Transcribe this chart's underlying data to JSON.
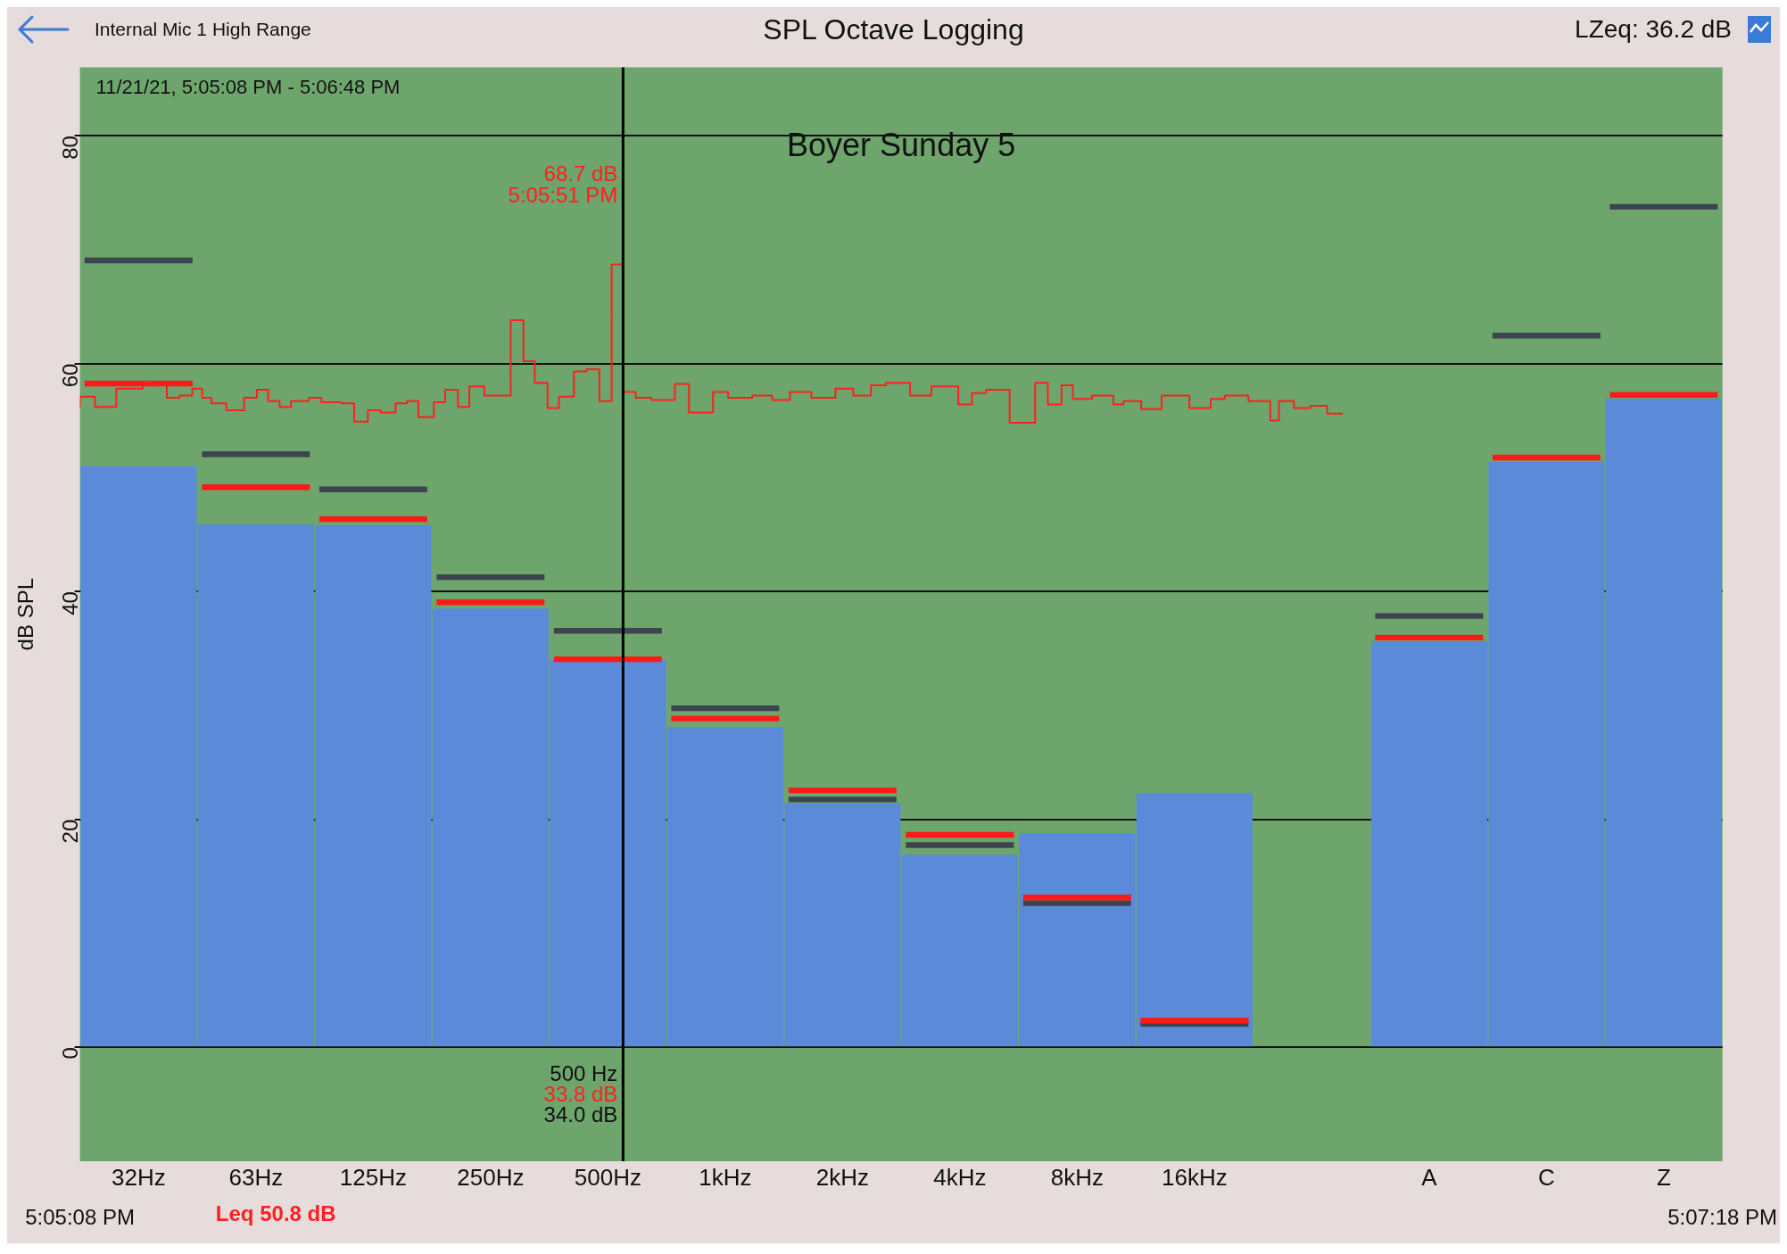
{
  "chart_data": {
    "type": "bar",
    "title": "SPL Octave Logging",
    "subtitle": "Boyer Sunday 5",
    "ylabel": "dB SPL",
    "categories": [
      "32Hz",
      "63Hz",
      "125Hz",
      "250Hz",
      "500Hz",
      "1kHz",
      "2kHz",
      "4kHz",
      "8kHz",
      "16kHz",
      null,
      "A",
      "C",
      "Z"
    ],
    "series": [
      {
        "color": "#5b8ad8",
        "values": [
          51.0,
          45.9,
          45.8,
          38.5,
          34.0,
          28.1,
          21.4,
          16.9,
          18.8,
          22.3,
          null,
          35.6,
          51.4,
          56.9
        ]
      },
      {
        "color": "#3c4450",
        "base": [
          68.8,
          51.8,
          48.7,
          41.0,
          36.3,
          29.5,
          21.5,
          17.5,
          12.4,
          1.8,
          null,
          37.6,
          62.2,
          73.5
        ],
        "values": [
          0.5,
          0.5,
          0.5,
          0.5,
          0.5,
          0.5,
          0.5,
          0.5,
          0.5,
          0.5,
          null,
          0.5,
          0.5,
          0.5
        ]
      },
      {
        "color": "#ff1a1a",
        "base": [
          58.0,
          48.9,
          46.1,
          38.8,
          33.8,
          28.6,
          22.3,
          18.4,
          12.9,
          2.1,
          null,
          35.7,
          51.5,
          57.0
        ],
        "values": [
          0.5,
          0.5,
          0.5,
          0.5,
          0.5,
          0.5,
          0.5,
          0.5,
          0.5,
          0.5,
          null,
          0.5,
          0.5,
          0.5
        ]
      },
      {
        "type": "step",
        "axis": "x2",
        "color": "#ff2020",
        "x": [
          17.08556,
          17.08589,
          17.08636,
          17.08694,
          17.08719,
          17.08747,
          17.08775,
          17.08803,
          17.08825,
          17.08845,
          17.08878,
          17.08917,
          17.08945,
          17.0897,
          17.08995,
          17.0902,
          17.09059,
          17.09087,
          17.09131,
          17.09159,
          17.09189,
          17.09217,
          17.0925,
          17.09275,
          17.093,
          17.09334,
          17.09359,
          17.09387,
          17.09412,
          17.09445,
          17.09503,
          17.09531,
          17.09556,
          17.09584,
          17.09609,
          17.09642,
          17.0967,
          17.09698,
          17.09725,
          17.0975,
          17.09778,
          17.09812,
          17.09864,
          17.09895,
          17.09948,
          17.09981,
          17.10034,
          17.10078,
          17.10117,
          17.10164,
          17.10217,
          17.10256,
          17.10295,
          17.10328,
          17.10381,
          17.10428,
          17.10487,
          17.10517,
          17.10548,
          17.106,
          17.10656,
          17.10684,
          17.10714,
          17.10739,
          17.10781,
          17.10828,
          17.1085,
          17.10889,
          17.10934,
          17.10995,
          17.11042,
          17.11073,
          17.11125,
          17.11173,
          17.11192,
          17.11225,
          17.11261,
          17.11298,
          17.11333
        ],
        "values": [
          56.2,
          57.1,
          56.2,
          57.8,
          58.4,
          58.1,
          57.0,
          57.2,
          57.8,
          57.0,
          56.5,
          55.9,
          57.0,
          57.7,
          56.7,
          56.2,
          56.7,
          57.0,
          56.6,
          56.5,
          54.9,
          55.9,
          55.7,
          56.5,
          56.7,
          55.3,
          56.6,
          57.7,
          56.2,
          58.0,
          57.2,
          63.8,
          60.2,
          58.3,
          56.1,
          57.1,
          59.3,
          59.5,
          56.7,
          68.7,
          57.5,
          57.0,
          56.8,
          58.2,
          55.7,
          57.5,
          57.0,
          57.2,
          56.8,
          57.5,
          57.0,
          57.8,
          57.2,
          58.1,
          58.3,
          57.2,
          58.0,
          56.4,
          57.4,
          57.7,
          54.8,
          58.3,
          56.4,
          58.1,
          56.9,
          57.2,
          56.4,
          56.7,
          56.0,
          57.2,
          56.1,
          56.9,
          57.2,
          56.7,
          55.0,
          56.7,
          56.1,
          56.3,
          55.6
        ]
      }
    ],
    "ylim": [
      -10,
      86
    ],
    "yticks": [
      0,
      20,
      40,
      60,
      80
    ],
    "x2lim": [
      17.08556,
      17.12167
    ],
    "x2ticks": [
      {
        "value": 17.08556,
        "label": "5:05:08 PM"
      },
      {
        "value": 17.12167,
        "label": "5:07:18 PM"
      }
    ],
    "ref_lines": [
      {
        "axis": "x2",
        "value": 17.0975,
        "color": "#000000"
      }
    ],
    "grid": "y",
    "legend": false,
    "annotations": [
      "Internal Mic 1 High Range",
      "LZeq: 36.2 dB",
      "11/21/21, 5:05:08 PM - 5:06:48 PM",
      "68.7 dB\n5:05:51 PM",
      "500 Hz",
      "33.8 dB",
      "34.0 dB",
      "Leq 50.8 dB"
    ]
  }
}
